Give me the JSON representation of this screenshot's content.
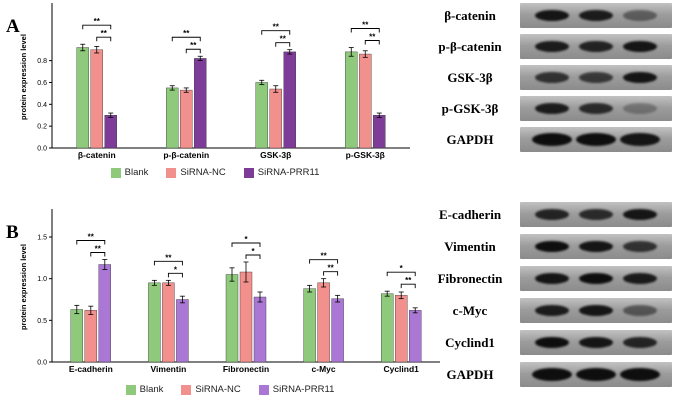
{
  "panels": {
    "a_label": "A",
    "b_label": "B"
  },
  "chart_data": [
    {
      "type": "bar",
      "panel": "A",
      "title": "",
      "xlabel": "",
      "ylabel": "protein expression level",
      "categories": [
        "β-catenin",
        "p-β-catenin",
        "GSK-3β",
        "p-GSK-3β"
      ],
      "yticks": [
        0.0,
        0.2,
        0.4,
        0.6,
        0.8
      ],
      "ylim": [
        0,
        1.3
      ],
      "legend_position": "bottom",
      "series": [
        {
          "name": "Blank",
          "color": "#8FC97C",
          "values": [
            0.92,
            0.55,
            0.6,
            0.88
          ],
          "errors": [
            0.03,
            0.02,
            0.02,
            0.04
          ]
        },
        {
          "name": "SiRNA-NC",
          "color": "#F2908D",
          "values": [
            0.9,
            0.53,
            0.54,
            0.86
          ],
          "errors": [
            0.03,
            0.02,
            0.03,
            0.03
          ]
        },
        {
          "name": "SiRNA-PRR11",
          "color": "#7D3C98",
          "values": [
            0.3,
            0.82,
            0.88,
            0.3
          ],
          "errors": [
            0.02,
            0.02,
            0.02,
            0.02
          ]
        }
      ],
      "brackets": [
        {
          "group": 0,
          "from": 1,
          "to": 2,
          "label": "**"
        },
        {
          "group": 0,
          "from": 0,
          "to": 2,
          "label": "**"
        },
        {
          "group": 1,
          "from": 1,
          "to": 2,
          "label": "**"
        },
        {
          "group": 1,
          "from": 0,
          "to": 2,
          "label": "**"
        },
        {
          "group": 2,
          "from": 1,
          "to": 2,
          "label": "**"
        },
        {
          "group": 2,
          "from": 0,
          "to": 2,
          "label": "**"
        },
        {
          "group": 3,
          "from": 1,
          "to": 2,
          "label": "**"
        },
        {
          "group": 3,
          "from": 0,
          "to": 2,
          "label": "**"
        }
      ]
    },
    {
      "type": "bar",
      "panel": "B",
      "title": "",
      "xlabel": "",
      "ylabel": "protein expression level",
      "categories": [
        "E-cadherin",
        "Vimentin",
        "Fibronectin",
        "c-Myc",
        "Cyclind1"
      ],
      "yticks": [
        0.0,
        0.5,
        1.0,
        1.5
      ],
      "ylim": [
        0,
        1.8
      ],
      "legend_position": "bottom",
      "series": [
        {
          "name": "Blank",
          "color": "#8FC97C",
          "values": [
            0.63,
            0.95,
            1.05,
            0.88,
            0.82
          ],
          "errors": [
            0.05,
            0.03,
            0.08,
            0.04,
            0.03
          ]
        },
        {
          "name": "SiRNA-NC",
          "color": "#F2908D",
          "values": [
            0.62,
            0.95,
            1.08,
            0.95,
            0.8
          ],
          "errors": [
            0.05,
            0.03,
            0.12,
            0.05,
            0.04
          ]
        },
        {
          "name": "SiRNA-PRR11",
          "color": "#AB77D5",
          "values": [
            1.17,
            0.75,
            0.78,
            0.76,
            0.62
          ],
          "errors": [
            0.06,
            0.04,
            0.06,
            0.04,
            0.03
          ]
        }
      ],
      "brackets": [
        {
          "group": 0,
          "from": 1,
          "to": 2,
          "label": "**"
        },
        {
          "group": 0,
          "from": 0,
          "to": 2,
          "label": "**"
        },
        {
          "group": 1,
          "from": 1,
          "to": 2,
          "label": "*"
        },
        {
          "group": 1,
          "from": 0,
          "to": 2,
          "label": "**"
        },
        {
          "group": 2,
          "from": 1,
          "to": 2,
          "label": "*"
        },
        {
          "group": 2,
          "from": 0,
          "to": 2,
          "label": "*"
        },
        {
          "group": 3,
          "from": 1,
          "to": 2,
          "label": "**"
        },
        {
          "group": 3,
          "from": 0,
          "to": 2,
          "label": "**"
        },
        {
          "group": 4,
          "from": 1,
          "to": 2,
          "label": "**"
        },
        {
          "group": 4,
          "from": 0,
          "to": 2,
          "label": "*"
        }
      ]
    }
  ],
  "blots_a": {
    "rows": [
      {
        "label": "β-catenin",
        "bands": [
          0.95,
          0.9,
          0.45
        ]
      },
      {
        "label": "p-β-catenin",
        "bands": [
          0.9,
          0.85,
          0.95
        ]
      },
      {
        "label": "GSK-3β",
        "bands": [
          0.75,
          0.7,
          0.95
        ]
      },
      {
        "label": "p-GSK-3β",
        "bands": [
          0.9,
          0.8,
          0.3
        ]
      },
      {
        "label": "GAPDH",
        "bands": [
          1,
          1,
          0.95
        ],
        "wide": true
      }
    ]
  },
  "blots_b": {
    "rows": [
      {
        "label": "E-cadherin",
        "bands": [
          0.85,
          0.8,
          0.95
        ]
      },
      {
        "label": "Vimentin",
        "bands": [
          1,
          0.95,
          0.75
        ]
      },
      {
        "label": "Fibronectin",
        "bands": [
          0.95,
          1,
          0.9
        ]
      },
      {
        "label": "c-Myc",
        "bands": [
          0.9,
          0.95,
          0.5
        ]
      },
      {
        "label": "Cyclind1",
        "bands": [
          1,
          0.95,
          0.85
        ]
      },
      {
        "label": "GAPDH",
        "bands": [
          1,
          1,
          1
        ],
        "wide": true
      }
    ]
  }
}
